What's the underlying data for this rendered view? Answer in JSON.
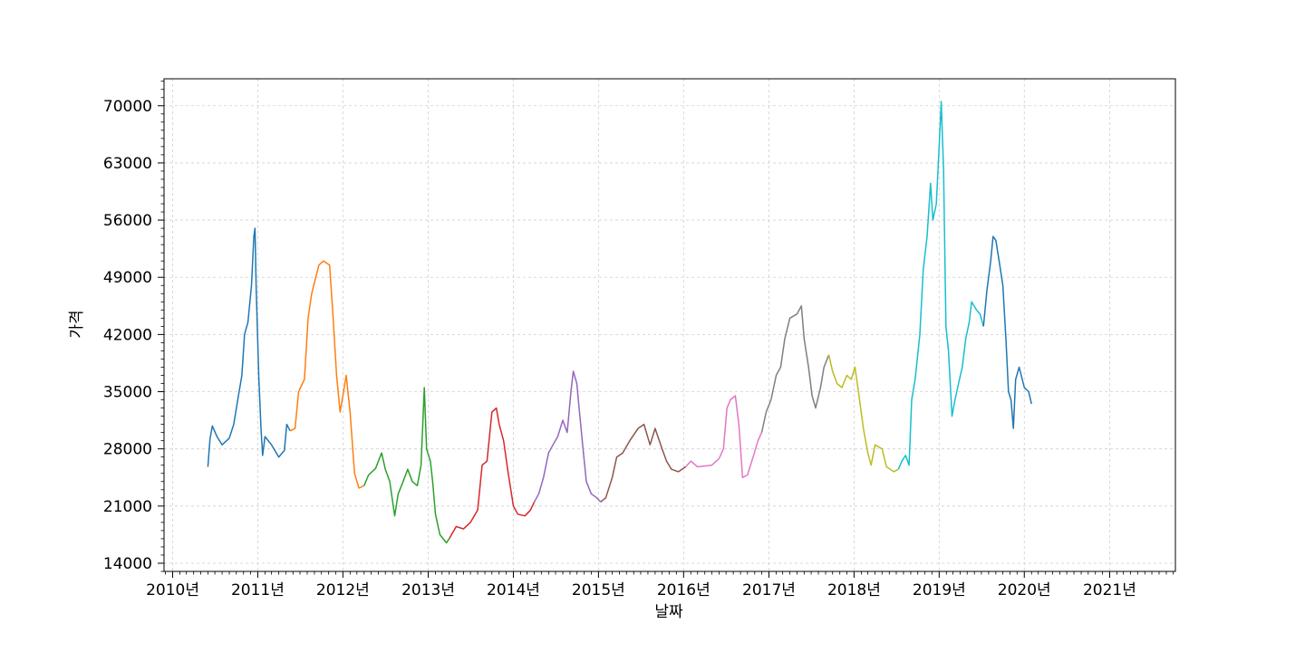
{
  "chart_data": {
    "type": "line",
    "title": "",
    "xlabel": "날짜",
    "ylabel": "가격",
    "x_tick_labels": [
      "2010년",
      "2011년",
      "2012년",
      "2013년",
      "2014년",
      "2015년",
      "2016년",
      "2017년",
      "2018년",
      "2019년",
      "2020년",
      "2021년"
    ],
    "y_tick_labels": [
      "14000",
      "21000",
      "28000",
      "35000",
      "42000",
      "49000",
      "56000",
      "63000",
      "70000"
    ],
    "xlim": [
      "2009-11-25",
      "2021-10-10"
    ],
    "ylim": [
      13000,
      73300
    ],
    "grid": true,
    "legend": false,
    "series": [
      {
        "color": "#1f77b4",
        "points": [
          [
            "2010-06-01",
            25800
          ],
          [
            "2010-06-10",
            29200
          ],
          [
            "2010-06-20",
            30800
          ],
          [
            "2010-07-10",
            29500
          ],
          [
            "2010-08-01",
            28500
          ],
          [
            "2010-09-01",
            29300
          ],
          [
            "2010-09-20",
            31000
          ],
          [
            "2010-10-10",
            34500
          ],
          [
            "2010-10-25",
            37000
          ],
          [
            "2010-11-05",
            42000
          ],
          [
            "2010-11-20",
            43500
          ],
          [
            "2010-12-05",
            48000
          ],
          [
            "2010-12-15",
            54000
          ],
          [
            "2010-12-20",
            55000
          ],
          [
            "2010-12-25",
            48000
          ],
          [
            "2011-01-05",
            37000
          ],
          [
            "2011-01-15",
            30500
          ],
          [
            "2011-01-22",
            27200
          ],
          [
            "2011-02-01",
            29500
          ],
          [
            "2011-03-01",
            28500
          ],
          [
            "2011-04-01",
            27000
          ],
          [
            "2011-04-25",
            27800
          ],
          [
            "2011-05-05",
            31000
          ],
          [
            "2011-05-20",
            30200
          ]
        ]
      },
      {
        "color": "#ff7f0e",
        "points": [
          [
            "2011-05-20",
            30200
          ],
          [
            "2011-06-10",
            30500
          ],
          [
            "2011-06-25",
            35000
          ],
          [
            "2011-07-20",
            36500
          ],
          [
            "2011-08-05",
            44000
          ],
          [
            "2011-08-20",
            47000
          ],
          [
            "2011-09-20",
            50500
          ],
          [
            "2011-10-10",
            51000
          ],
          [
            "2011-11-05",
            50500
          ],
          [
            "2011-11-20",
            44000
          ],
          [
            "2011-12-05",
            37000
          ],
          [
            "2011-12-20",
            32500
          ],
          [
            "2012-01-01",
            34500
          ],
          [
            "2012-01-15",
            37000
          ],
          [
            "2012-02-01",
            32500
          ],
          [
            "2012-02-20",
            25000
          ],
          [
            "2012-03-10",
            23200
          ],
          [
            "2012-04-01",
            23500
          ]
        ]
      },
      {
        "color": "#2ca02c",
        "points": [
          [
            "2012-04-01",
            23500
          ],
          [
            "2012-04-20",
            24800
          ],
          [
            "2012-05-20",
            25600
          ],
          [
            "2012-06-15",
            27500
          ],
          [
            "2012-07-01",
            25500
          ],
          [
            "2012-07-20",
            24000
          ],
          [
            "2012-08-10",
            19800
          ],
          [
            "2012-08-25",
            22500
          ],
          [
            "2012-09-15",
            24000
          ],
          [
            "2012-10-05",
            25500
          ],
          [
            "2012-10-25",
            24000
          ],
          [
            "2012-11-15",
            23500
          ],
          [
            "2012-12-01",
            26000
          ],
          [
            "2012-12-10",
            32000
          ],
          [
            "2012-12-15",
            35500
          ],
          [
            "2012-12-25",
            28000
          ],
          [
            "2013-01-10",
            26500
          ],
          [
            "2013-01-20",
            24000
          ],
          [
            "2013-02-01",
            20000
          ],
          [
            "2013-02-20",
            17500
          ],
          [
            "2013-03-20",
            16500
          ],
          [
            "2013-04-01",
            17000
          ]
        ]
      },
      {
        "color": "#d62728",
        "points": [
          [
            "2013-04-01",
            17000
          ],
          [
            "2013-05-01",
            18500
          ],
          [
            "2013-06-01",
            18200
          ],
          [
            "2013-07-01",
            19000
          ],
          [
            "2013-08-01",
            20500
          ],
          [
            "2013-08-20",
            26000
          ],
          [
            "2013-09-10",
            26500
          ],
          [
            "2013-10-01",
            32500
          ],
          [
            "2013-10-20",
            33000
          ],
          [
            "2013-11-01",
            31000
          ],
          [
            "2013-11-20",
            29000
          ],
          [
            "2013-12-10",
            25000
          ],
          [
            "2014-01-01",
            21000
          ],
          [
            "2014-01-20",
            20000
          ],
          [
            "2014-02-20",
            19800
          ],
          [
            "2014-03-15",
            20500
          ],
          [
            "2014-04-01",
            21500
          ]
        ]
      },
      {
        "color": "#9467bd",
        "points": [
          [
            "2014-04-01",
            21500
          ],
          [
            "2014-04-20",
            22500
          ],
          [
            "2014-05-10",
            24500
          ],
          [
            "2014-06-01",
            27500
          ],
          [
            "2014-06-20",
            28500
          ],
          [
            "2014-07-10",
            29500
          ],
          [
            "2014-08-01",
            31500
          ],
          [
            "2014-08-20",
            30000
          ],
          [
            "2014-09-05",
            35000
          ],
          [
            "2014-09-15",
            37500
          ],
          [
            "2014-09-30",
            36000
          ],
          [
            "2014-10-10",
            33000
          ],
          [
            "2014-10-25",
            28500
          ],
          [
            "2014-11-10",
            24000
          ],
          [
            "2014-12-01",
            22500
          ],
          [
            "2014-12-25",
            22000
          ],
          [
            "2015-01-10",
            21500
          ]
        ]
      },
      {
        "color": "#8c564b",
        "points": [
          [
            "2015-01-10",
            21500
          ],
          [
            "2015-02-01",
            22000
          ],
          [
            "2015-03-01",
            24500
          ],
          [
            "2015-03-20",
            27000
          ],
          [
            "2015-04-15",
            27500
          ],
          [
            "2015-05-15",
            29000
          ],
          [
            "2015-06-20",
            30500
          ],
          [
            "2015-07-15",
            31000
          ],
          [
            "2015-08-10",
            28500
          ],
          [
            "2015-09-01",
            30500
          ],
          [
            "2015-10-01",
            28000
          ],
          [
            "2015-10-20",
            26500
          ],
          [
            "2015-11-10",
            25500
          ],
          [
            "2015-12-10",
            25200
          ],
          [
            "2016-01-10",
            25800
          ]
        ]
      },
      {
        "color": "#e377c2",
        "points": [
          [
            "2016-01-10",
            25800
          ],
          [
            "2016-02-01",
            26500
          ],
          [
            "2016-03-01",
            25800
          ],
          [
            "2016-05-01",
            26000
          ],
          [
            "2016-06-01",
            26800
          ],
          [
            "2016-06-20",
            28000
          ],
          [
            "2016-07-05",
            33000
          ],
          [
            "2016-07-20",
            34000
          ],
          [
            "2016-08-10",
            34500
          ],
          [
            "2016-08-25",
            31000
          ],
          [
            "2016-09-10",
            24500
          ],
          [
            "2016-10-01",
            24800
          ],
          [
            "2016-10-25",
            27000
          ],
          [
            "2016-11-15",
            29000
          ],
          [
            "2016-12-01",
            30000
          ]
        ]
      },
      {
        "color": "#7f7f7f",
        "points": [
          [
            "2016-12-01",
            30000
          ],
          [
            "2016-12-20",
            32500
          ],
          [
            "2017-01-10",
            34000
          ],
          [
            "2017-02-01",
            37000
          ],
          [
            "2017-02-20",
            38000
          ],
          [
            "2017-03-10",
            41500
          ],
          [
            "2017-04-01",
            44000
          ],
          [
            "2017-05-01",
            44500
          ],
          [
            "2017-05-20",
            45500
          ],
          [
            "2017-06-01",
            41500
          ],
          [
            "2017-06-20",
            38000
          ],
          [
            "2017-07-05",
            34500
          ],
          [
            "2017-07-20",
            33000
          ],
          [
            "2017-08-10",
            35500
          ],
          [
            "2017-08-25",
            38000
          ],
          [
            "2017-09-15",
            39500
          ]
        ]
      },
      {
        "color": "#bcbd22",
        "points": [
          [
            "2017-09-15",
            39500
          ],
          [
            "2017-10-01",
            37500
          ],
          [
            "2017-10-20",
            36000
          ],
          [
            "2017-11-10",
            35500
          ],
          [
            "2017-12-01",
            37000
          ],
          [
            "2017-12-20",
            36500
          ],
          [
            "2018-01-05",
            38000
          ],
          [
            "2018-01-20",
            35000
          ],
          [
            "2018-02-10",
            30500
          ],
          [
            "2018-03-01",
            27500
          ],
          [
            "2018-03-15",
            26000
          ],
          [
            "2018-04-01",
            28500
          ],
          [
            "2018-05-01",
            28000
          ],
          [
            "2018-05-20",
            25800
          ],
          [
            "2018-06-20",
            25200
          ],
          [
            "2018-07-10",
            25500
          ]
        ]
      },
      {
        "color": "#17becf",
        "points": [
          [
            "2018-07-10",
            25500
          ],
          [
            "2018-07-25",
            26500
          ],
          [
            "2018-08-10",
            27200
          ],
          [
            "2018-08-25",
            26000
          ],
          [
            "2018-09-05",
            34000
          ],
          [
            "2018-09-20",
            36500
          ],
          [
            "2018-10-10",
            42000
          ],
          [
            "2018-10-25",
            50000
          ],
          [
            "2018-11-10",
            54000
          ],
          [
            "2018-11-25",
            60500
          ],
          [
            "2018-12-05",
            56000
          ],
          [
            "2018-12-20",
            58000
          ],
          [
            "2019-01-01",
            65000
          ],
          [
            "2019-01-10",
            70500
          ],
          [
            "2019-01-20",
            62000
          ],
          [
            "2019-01-30",
            43000
          ],
          [
            "2019-02-10",
            40000
          ],
          [
            "2019-02-25",
            32000
          ],
          [
            "2019-03-10",
            34000
          ],
          [
            "2019-03-25",
            36000
          ],
          [
            "2019-04-10",
            38000
          ],
          [
            "2019-04-25",
            41500
          ],
          [
            "2019-05-10",
            43500
          ],
          [
            "2019-05-20",
            46000
          ],
          [
            "2019-06-10",
            45000
          ],
          [
            "2019-06-25",
            44500
          ],
          [
            "2019-07-10",
            43000
          ]
        ]
      },
      {
        "color": "#1f77b4",
        "points": [
          [
            "2019-07-10",
            43000
          ],
          [
            "2019-07-25",
            47500
          ],
          [
            "2019-08-10",
            51000
          ],
          [
            "2019-08-20",
            54000
          ],
          [
            "2019-09-01",
            53500
          ],
          [
            "2019-09-15",
            51000
          ],
          [
            "2019-10-01",
            48000
          ],
          [
            "2019-10-15",
            41000
          ],
          [
            "2019-10-25",
            35000
          ],
          [
            "2019-11-05",
            34000
          ],
          [
            "2019-11-15",
            30500
          ],
          [
            "2019-11-25",
            36500
          ],
          [
            "2019-12-10",
            38000
          ],
          [
            "2020-01-01",
            35500
          ],
          [
            "2020-01-20",
            35000
          ],
          [
            "2020-02-01",
            33500
          ]
        ]
      }
    ]
  }
}
